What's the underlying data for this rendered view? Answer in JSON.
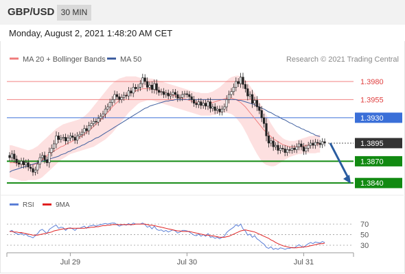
{
  "header": {
    "pair": "GBP/USD",
    "timeframe": "30 MIN",
    "datetime": "Monday, August 2, 2021 1:48:20 AM CET",
    "copyright": "Research © 2021 Trading Central"
  },
  "colors": {
    "ma20": "#f08080",
    "bollinger_fill": "#fde0e0",
    "ma50": "#3f5f9f",
    "resistance": "#f08080",
    "current_level": "#3a6fd8",
    "support": "#128a12",
    "price_box": "#333333",
    "arrow": "#2a5ca0",
    "rsi": "#5b7fd6",
    "rsi_ma": "#e02020"
  },
  "chart_data": [
    {
      "type": "candlestick",
      "title": "",
      "legend": [
        {
          "name": "MA 20 + Bollinger Bands",
          "color": "#f08080"
        },
        {
          "name": "MA 50",
          "color": "#3f5f9f"
        }
      ],
      "y_range": [
        1.3826,
        1.3996
      ],
      "x_ticks": [
        {
          "label": "Jul 29",
          "index": 26
        },
        {
          "label": "Jul 30",
          "index": 76
        },
        {
          "label": "Jul 31",
          "index": 126
        }
      ],
      "levels": [
        {
          "value": 1.398,
          "label": "1.3980",
          "kind": "resistance"
        },
        {
          "value": 1.3955,
          "label": "1.3955",
          "kind": "resistance"
        },
        {
          "value": 1.393,
          "label": "1.3930",
          "kind": "pivot"
        },
        {
          "value": 1.3895,
          "label": "1.3895",
          "kind": "last_price"
        },
        {
          "value": 1.387,
          "label": "1.3870",
          "kind": "support"
        },
        {
          "value": 1.384,
          "label": "1.3840",
          "kind": "support"
        }
      ],
      "projection": {
        "from": 1.3895,
        "to": 1.384
      },
      "close": [
        1.3875,
        1.388,
        1.3873,
        1.3868,
        1.3866,
        1.387,
        1.3865,
        1.3868,
        1.3862,
        1.386,
        1.3855,
        1.3858,
        1.3866,
        1.3875,
        1.3878,
        1.3872,
        1.3868,
        1.3882,
        1.3888,
        1.3894,
        1.3905,
        1.39,
        1.3902,
        1.3903,
        1.3898,
        1.3902,
        1.3905,
        1.3903,
        1.3899,
        1.3905,
        1.3907,
        1.391,
        1.3915,
        1.3912,
        1.3919,
        1.3922,
        1.3925,
        1.3924,
        1.3929,
        1.3932,
        1.3935,
        1.3942,
        1.3945,
        1.3951,
        1.3955,
        1.3962,
        1.3959,
        1.3955,
        1.3958,
        1.3961,
        1.396,
        1.3967,
        1.3964,
        1.3972,
        1.397,
        1.3972,
        1.3977,
        1.3985,
        1.398,
        1.3972,
        1.3975,
        1.3969,
        1.3977,
        1.3968,
        1.3965,
        1.3966,
        1.3962,
        1.3964,
        1.396,
        1.3962,
        1.3965,
        1.3962,
        1.3957,
        1.3958,
        1.3962,
        1.3963,
        1.3962,
        1.3959,
        1.3955,
        1.395,
        1.3948,
        1.3952,
        1.3947,
        1.395,
        1.3946,
        1.3952,
        1.3943,
        1.3945,
        1.394,
        1.3942,
        1.3938,
        1.3942,
        1.3945,
        1.3955,
        1.3962,
        1.3966,
        1.3972,
        1.398,
        1.3977,
        1.3986,
        1.3976,
        1.397,
        1.396,
        1.3962,
        1.395,
        1.3954,
        1.3945,
        1.394,
        1.393,
        1.3922,
        1.3905,
        1.3895,
        1.3898,
        1.389,
        1.3892,
        1.3885,
        1.3888,
        1.3887,
        1.3882,
        1.3886,
        1.3885,
        1.3888,
        1.3886,
        1.389,
        1.3894,
        1.389,
        1.3884,
        1.3888,
        1.3892,
        1.3895,
        1.3892,
        1.3896,
        1.3895,
        1.3893,
        1.3897,
        1.3895
      ],
      "indicators": [
        {
          "name": "MA 20",
          "values": [
            1.3868,
            1.3868,
            1.3868,
            1.3867,
            1.3866,
            1.3866,
            1.3866,
            1.3866,
            1.3865,
            1.3865,
            1.3865,
            1.3866,
            1.3867,
            1.3869,
            1.3872,
            1.3875,
            1.3878,
            1.388,
            1.3882,
            1.3884,
            1.3886,
            1.3888,
            1.389,
            1.3891,
            1.3893,
            1.3895,
            1.3896,
            1.3898,
            1.3899,
            1.3901,
            1.3903,
            1.3905,
            1.3907,
            1.391,
            1.3912,
            1.3915,
            1.3918,
            1.3921,
            1.3924,
            1.3927,
            1.393,
            1.3934,
            1.3937,
            1.3941,
            1.3945,
            1.3948,
            1.3951,
            1.3954,
            1.3957,
            1.3959,
            1.3961,
            1.3963,
            1.3965,
            1.3966,
            1.3967,
            1.3968,
            1.3969,
            1.397,
            1.397,
            1.397,
            1.397,
            1.397,
            1.3969,
            1.3968,
            1.3967,
            1.3966,
            1.3965,
            1.3964,
            1.3963,
            1.3962,
            1.3961,
            1.396,
            1.3959,
            1.3958,
            1.3957,
            1.3956,
            1.3955,
            1.3954,
            1.3953,
            1.3952,
            1.3951,
            1.395,
            1.3949,
            1.3949,
            1.3949,
            1.395,
            1.395,
            1.3951,
            1.3952,
            1.3953,
            1.3954,
            1.3955,
            1.3956,
            1.3957,
            1.3957,
            1.3957,
            1.3956,
            1.3955,
            1.3953,
            1.3951,
            1.3948,
            1.3945,
            1.3941,
            1.3937,
            1.3933,
            1.3929,
            1.3925,
            1.3921,
            1.3917,
            1.3913,
            1.391,
            1.3907,
            1.3904,
            1.3901,
            1.3899,
            1.3897,
            1.3895,
            1.3893,
            1.3892,
            1.3891,
            1.389,
            1.389,
            1.389,
            1.389,
            1.389,
            1.3891,
            1.3891,
            1.3892,
            1.3892,
            1.3893,
            1.3893,
            1.3893,
            1.3894,
            1.3894
          ]
        },
        {
          "name": "MA 50",
          "values": [
            1.3855,
            1.3857,
            1.3858,
            1.3859,
            1.386,
            1.3861,
            1.3862,
            1.3863,
            1.3864,
            1.3865,
            1.3866,
            1.3867,
            1.3868,
            1.3869,
            1.387,
            1.3871,
            1.3872,
            1.3873,
            1.3874,
            1.3875,
            1.3876,
            1.3877,
            1.3879,
            1.388,
            1.3881,
            1.3883,
            1.3884,
            1.3886,
            1.3887,
            1.3889,
            1.389,
            1.3892,
            1.3893,
            1.3895,
            1.3897,
            1.3898,
            1.39,
            1.3902,
            1.3903,
            1.3905,
            1.3907,
            1.3909,
            1.3911,
            1.3913,
            1.3915,
            1.3917,
            1.3919,
            1.3921,
            1.3923,
            1.3925,
            1.3927,
            1.3929,
            1.3931,
            1.3933,
            1.3935,
            1.3937,
            1.3939,
            1.3941,
            1.3943,
            1.3944,
            1.3946,
            1.3947,
            1.3948,
            1.3949,
            1.395,
            1.3951,
            1.3952,
            1.3953,
            1.3953,
            1.3954,
            1.3954,
            1.3955,
            1.3955,
            1.3955,
            1.3955,
            1.3955,
            1.3955,
            1.3955,
            1.3955,
            1.3955,
            1.3955,
            1.3955,
            1.3955,
            1.3955,
            1.3955,
            1.3955,
            1.3955,
            1.3955,
            1.3955,
            1.3955,
            1.3955,
            1.3955,
            1.3955,
            1.3955,
            1.3955,
            1.3955,
            1.3955,
            1.3955,
            1.3954,
            1.3954,
            1.3953,
            1.3952,
            1.3951,
            1.395,
            1.3949,
            1.3948,
            1.3946,
            1.3945,
            1.3943,
            1.3942,
            1.394,
            1.3938,
            1.3937,
            1.3935,
            1.3933,
            1.3932,
            1.393,
            1.3928,
            1.3927,
            1.3925,
            1.3923,
            1.3922,
            1.392,
            1.3918,
            1.3917,
            1.3915,
            1.3914,
            1.3912,
            1.3911,
            1.3909,
            1.3908,
            1.3906,
            1.3905,
            1.3904
          ]
        },
        {
          "name": "Bollinger Upper",
          "values": [
            1.3892,
            1.3892,
            1.3891,
            1.389,
            1.3889,
            1.3888,
            1.3887,
            1.3886,
            1.3885,
            1.3886,
            1.3887,
            1.3889,
            1.3891,
            1.3894,
            1.3897,
            1.39,
            1.3903,
            1.3906,
            1.3909,
            1.3912,
            1.3915,
            1.3917,
            1.3919,
            1.3921,
            1.3922,
            1.3923,
            1.3924,
            1.3925,
            1.3926,
            1.3927,
            1.3928,
            1.393,
            1.3932,
            1.3935,
            1.3938,
            1.3942,
            1.3946,
            1.395,
            1.3954,
            1.3958,
            1.3962,
            1.3966,
            1.397,
            1.3974,
            1.3977,
            1.398,
            1.3982,
            1.3984,
            1.3985,
            1.3986,
            1.3987,
            1.3987,
            1.3987,
            1.3987,
            1.3987,
            1.3986,
            1.3985,
            1.3985,
            1.3985,
            1.3985,
            1.3984,
            1.3984,
            1.3983,
            1.3982,
            1.3981,
            1.398,
            1.3979,
            1.3978,
            1.3977,
            1.3976,
            1.3975,
            1.3974,
            1.3973,
            1.3972,
            1.3971,
            1.397,
            1.3969,
            1.3968,
            1.3967,
            1.3966,
            1.3965,
            1.3965,
            1.3964,
            1.3964,
            1.3964,
            1.3964,
            1.3965,
            1.3966,
            1.3968,
            1.397,
            1.3972,
            1.3975,
            1.3978,
            1.3981,
            1.3984,
            1.3986,
            1.3987,
            1.3988,
            1.3988,
            1.3987,
            1.3985,
            1.3982,
            1.3978,
            1.3974,
            1.3969,
            1.3964,
            1.3958,
            1.3952,
            1.3946,
            1.394,
            1.3934,
            1.3928,
            1.3922,
            1.3917,
            1.3912,
            1.3908,
            1.3905,
            1.3902,
            1.39,
            1.3899,
            1.3898,
            1.3898,
            1.3898,
            1.3899,
            1.39,
            1.3901,
            1.3902,
            1.3903,
            1.3904,
            1.3905,
            1.3905,
            1.3906,
            1.3906,
            1.3907
          ]
        },
        {
          "name": "Bollinger Lower",
          "values": [
            1.3848,
            1.3847,
            1.3846,
            1.3845,
            1.3844,
            1.3843,
            1.3843,
            1.3843,
            1.3844,
            1.3844,
            1.3844,
            1.3844,
            1.3845,
            1.3846,
            1.3848,
            1.3851,
            1.3854,
            1.3857,
            1.386,
            1.3863,
            1.3866,
            1.3869,
            1.3872,
            1.3874,
            1.3876,
            1.3878,
            1.388,
            1.3881,
            1.3882,
            1.3883,
            1.3884,
            1.3885,
            1.3886,
            1.3887,
            1.3888,
            1.3889,
            1.389,
            1.3892,
            1.3894,
            1.3896,
            1.3898,
            1.39,
            1.3903,
            1.3906,
            1.3909,
            1.3913,
            1.3917,
            1.3921,
            1.3925,
            1.3929,
            1.3933,
            1.3937,
            1.394,
            1.3943,
            1.3946,
            1.3949,
            1.3951,
            1.3952,
            1.3953,
            1.3954,
            1.3954,
            1.3954,
            1.3953,
            1.3952,
            1.3951,
            1.395,
            1.3949,
            1.3948,
            1.3947,
            1.3946,
            1.3945,
            1.3944,
            1.3943,
            1.3942,
            1.3941,
            1.394,
            1.3939,
            1.3938,
            1.3937,
            1.3936,
            1.3935,
            1.3934,
            1.3933,
            1.3933,
            1.3933,
            1.3933,
            1.3933,
            1.3934,
            1.3934,
            1.3935,
            1.3936,
            1.3937,
            1.3937,
            1.3937,
            1.3936,
            1.3935,
            1.3933,
            1.393,
            1.3926,
            1.3922,
            1.3917,
            1.3911,
            1.3905,
            1.3898,
            1.3892,
            1.3886,
            1.388,
            1.3875,
            1.387,
            1.3867,
            1.3865,
            1.3864,
            1.3863,
            1.3863,
            1.3864,
            1.3866,
            1.3868,
            1.387,
            1.3872,
            1.3874,
            1.3876,
            1.3877,
            1.3878,
            1.3879,
            1.388,
            1.388,
            1.3881,
            1.3881,
            1.3881,
            1.3881,
            1.3881,
            1.3881,
            1.3882,
            1.3882
          ]
        }
      ]
    },
    {
      "type": "line",
      "title": "",
      "legend": [
        {
          "name": "RSI",
          "color": "#5b7fd6"
        },
        {
          "name": "9MA",
          "color": "#e02020"
        }
      ],
      "y_ticks": [
        70,
        50,
        30
      ],
      "y_range": [
        17,
        87
      ],
      "series": [
        {
          "name": "RSI",
          "values": [
            56,
            58,
            54,
            52,
            50,
            53,
            49,
            51,
            47,
            46,
            44,
            48,
            52,
            58,
            60,
            56,
            52,
            60,
            63,
            66,
            68,
            62,
            64,
            63,
            58,
            62,
            63,
            61,
            58,
            62,
            62,
            64,
            66,
            62,
            66,
            67,
            68,
            66,
            68,
            69,
            70,
            71,
            70,
            71,
            72,
            72,
            69,
            66,
            68,
            69,
            68,
            71,
            68,
            72,
            70,
            70,
            70,
            72,
            69,
            64,
            66,
            61,
            66,
            60,
            58,
            59,
            56,
            58,
            55,
            57,
            59,
            57,
            53,
            55,
            58,
            58,
            57,
            55,
            52,
            49,
            48,
            51,
            47,
            50,
            47,
            52,
            45,
            46,
            43,
            45,
            42,
            45,
            47,
            54,
            58,
            61,
            64,
            69,
            66,
            70,
            61,
            57,
            49,
            51,
            45,
            48,
            42,
            39,
            35,
            32,
            26,
            24,
            27,
            22,
            24,
            22,
            25,
            24,
            22,
            24,
            24,
            26,
            25,
            28,
            31,
            28,
            26,
            30,
            33,
            35,
            33,
            36,
            35,
            34,
            37,
            35
          ]
        },
        {
          "name": "9MA",
          "values": [
            56,
            56,
            55,
            55,
            54,
            54,
            53,
            52,
            51,
            50,
            49,
            49,
            49,
            50,
            51,
            52,
            53,
            54,
            55,
            57,
            58,
            59,
            60,
            61,
            61,
            62,
            62,
            62,
            62,
            62,
            62,
            62,
            62,
            63,
            63,
            64,
            64,
            65,
            65,
            66,
            67,
            67,
            68,
            68,
            69,
            69,
            69,
            69,
            69,
            69,
            69,
            69,
            69,
            69,
            70,
            70,
            70,
            70,
            70,
            69,
            68,
            68,
            67,
            66,
            65,
            64,
            63,
            62,
            61,
            60,
            59,
            58,
            57,
            57,
            56,
            56,
            56,
            56,
            55,
            54,
            53,
            52,
            51,
            50,
            49,
            49,
            48,
            48,
            47,
            46,
            45,
            45,
            45,
            46,
            47,
            49,
            51,
            53,
            55,
            57,
            58,
            59,
            58,
            57,
            56,
            55,
            53,
            51,
            49,
            47,
            45,
            43,
            40,
            38,
            35,
            33,
            31,
            29,
            28,
            27,
            26,
            25,
            25,
            25,
            26,
            26,
            27,
            27,
            28,
            29,
            30,
            31,
            32,
            33,
            33,
            34
          ]
        }
      ]
    }
  ]
}
